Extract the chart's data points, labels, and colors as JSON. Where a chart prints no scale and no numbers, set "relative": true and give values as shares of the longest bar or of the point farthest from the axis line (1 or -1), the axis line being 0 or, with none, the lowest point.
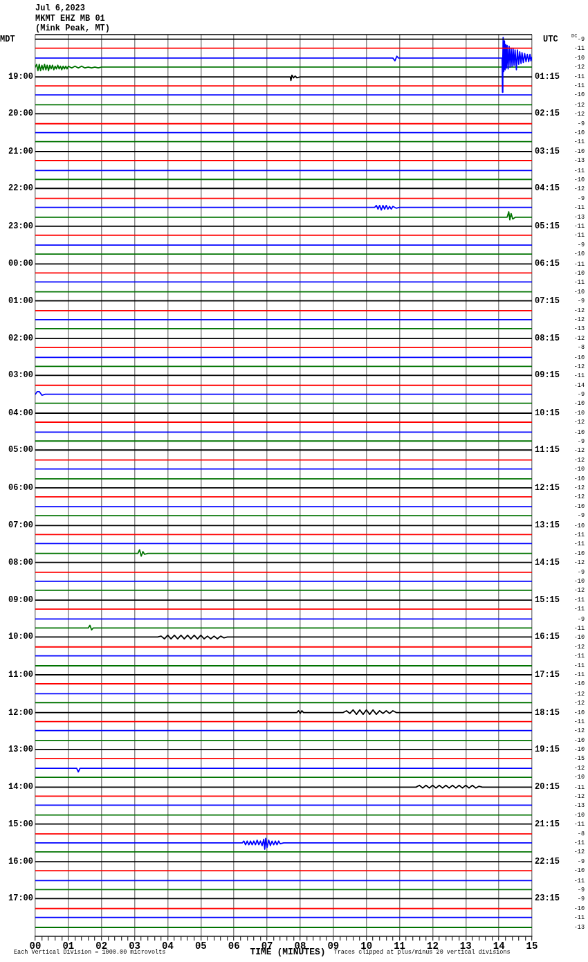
{
  "chart_data": {
    "type": "line",
    "relative": true,
    "title": "Jul 6,2023",
    "subtitle": "MKMT EHZ MB 01\n(Mink Peak, MT)",
    "xlabel": "TIME (MINUTES)",
    "ylabel": "MDT",
    "y2label": "UTC",
    "y3label": "DC",
    "grid": "x",
    "marker": "none",
    "xlim": [
      0,
      15
    ],
    "xticks": [
      {
        "value": 0,
        "label": "00"
      },
      {
        "value": 0.2,
        "label": null
      },
      {
        "value": 0.4,
        "label": null
      },
      {
        "value": 0.6,
        "label": null
      },
      {
        "value": 0.8,
        "label": null
      },
      {
        "value": 1,
        "label": "01"
      },
      {
        "value": 1.2,
        "label": null
      },
      {
        "value": 1.4,
        "label": null
      },
      {
        "value": 1.6,
        "label": null
      },
      {
        "value": 1.8,
        "label": null
      },
      {
        "value": 2,
        "label": "02"
      },
      {
        "value": 2.2,
        "label": null
      },
      {
        "value": 2.4,
        "label": null
      },
      {
        "value": 2.6,
        "label": null
      },
      {
        "value": 2.8,
        "label": null
      },
      {
        "value": 3,
        "label": "03"
      },
      {
        "value": 3.2,
        "label": null
      },
      {
        "value": 3.4,
        "label": null
      },
      {
        "value": 3.6,
        "label": null
      },
      {
        "value": 3.8,
        "label": null
      },
      {
        "value": 4,
        "label": "04"
      },
      {
        "value": 4.2,
        "label": null
      },
      {
        "value": 4.4,
        "label": null
      },
      {
        "value": 4.6,
        "label": null
      },
      {
        "value": 4.8,
        "label": null
      },
      {
        "value": 5,
        "label": "05"
      },
      {
        "value": 5.2,
        "label": null
      },
      {
        "value": 5.4,
        "label": null
      },
      {
        "value": 5.6,
        "label": null
      },
      {
        "value": 5.8,
        "label": null
      },
      {
        "value": 6,
        "label": "06"
      },
      {
        "value": 6.2,
        "label": null
      },
      {
        "value": 6.4,
        "label": null
      },
      {
        "value": 6.6,
        "label": null
      },
      {
        "value": 6.8,
        "label": null
      },
      {
        "value": 7,
        "label": "07"
      },
      {
        "value": 7.2,
        "label": null
      },
      {
        "value": 7.4,
        "label": null
      },
      {
        "value": 7.6,
        "label": null
      },
      {
        "value": 7.8,
        "label": null
      },
      {
        "value": 8,
        "label": "08"
      },
      {
        "value": 8.2,
        "label": null
      },
      {
        "value": 8.4,
        "label": null
      },
      {
        "value": 8.6,
        "label": null
      },
      {
        "value": 8.8,
        "label": null
      },
      {
        "value": 9,
        "label": "09"
      },
      {
        "value": 9.2,
        "label": null
      },
      {
        "value": 9.4,
        "label": null
      },
      {
        "value": 9.6,
        "label": null
      },
      {
        "value": 9.8,
        "label": null
      },
      {
        "value": 10,
        "label": "10"
      },
      {
        "value": 10.2,
        "label": null
      },
      {
        "value": 10.4,
        "label": null
      },
      {
        "value": 10.6,
        "label": null
      },
      {
        "value": 10.8,
        "label": null
      },
      {
        "value": 11,
        "label": "11"
      },
      {
        "value": 11.2,
        "label": null
      },
      {
        "value": 11.4,
        "label": null
      },
      {
        "value": 11.6,
        "label": null
      },
      {
        "value": 11.8,
        "label": null
      },
      {
        "value": 12,
        "label": "12"
      },
      {
        "value": 12.2,
        "label": null
      },
      {
        "value": 12.4,
        "label": null
      },
      {
        "value": 12.6,
        "label": null
      },
      {
        "value": 12.8,
        "label": null
      },
      {
        "value": 13,
        "label": "13"
      },
      {
        "value": 13.2,
        "label": null
      },
      {
        "value": 13.4,
        "label": null
      },
      {
        "value": 13.6,
        "label": null
      },
      {
        "value": 13.8,
        "label": null
      },
      {
        "value": 14,
        "label": "14"
      },
      {
        "value": 14.2,
        "label": null
      },
      {
        "value": 14.4,
        "label": null
      },
      {
        "value": 14.6,
        "label": null
      },
      {
        "value": 14.8,
        "label": null
      },
      {
        "value": 15,
        "label": "15"
      }
    ],
    "annotations": [
      "-9",
      "-11",
      "-10",
      "-12",
      "-11",
      "-11",
      "-10",
      "-12",
      "-12",
      "-9",
      "-10",
      "-11",
      "-10",
      "-13",
      "-11",
      "-10",
      "-12",
      "-9",
      "-11",
      "-13",
      "-11",
      "-11",
      "-9",
      "-10",
      "-11",
      "-10",
      "-11",
      "-10",
      "-9",
      "-12",
      "-12",
      "-13",
      "-12",
      "-8",
      "-10",
      "-12",
      "-11",
      "-14",
      "-9",
      "-10",
      "-10",
      "-12",
      "-10",
      "-9",
      "-12",
      "-12",
      "-10",
      "-10",
      "-12",
      "-12",
      "-10",
      "-9",
      "-10",
      "-11",
      "-11",
      "-10",
      "-12",
      "-9",
      "-10",
      "-12",
      "-11",
      "-11",
      "-9",
      "-11",
      "-10",
      "-12",
      "-11",
      "-11",
      "-11",
      "-10",
      "-12",
      "-12",
      "-10",
      "-11",
      "-12",
      "-10",
      "-10",
      "-15",
      "-12",
      "-10",
      "-11",
      "-12",
      "-13",
      "-10",
      "-11",
      "-8",
      "-11",
      "-12",
      "-9",
      "-10",
      "-11",
      "-9",
      "-9",
      "-10",
      "-11",
      "-13",
      "01:15",
      "02:15",
      "03:15",
      "04:15",
      "05:15",
      "06:15",
      "07:15",
      "08:15",
      "09:15",
      "10:15",
      "11:15",
      "12:15",
      "13:15",
      "14:15",
      "15:15",
      "16:15",
      "17:15",
      "18:15",
      "19:15",
      "20:15",
      "21:15",
      "22:15",
      "23:15",
      "Each Vertical Division = 1000.00 microvolts",
      "Traces clipped at plus/minus 20 vertical divisions"
    ],
    "series": [
      {
        "color": "#000000",
        "x": [
          0,
          15
        ],
        "values": [
          0.998,
          0.998
        ]
      },
      {
        "color": "#ff0000",
        "x": [
          0,
          15
        ],
        "values": [
          0.988,
          0.988
        ]
      },
      {
        "color": "#0000ff",
        "x": [
          0,
          10.8,
          10.86,
          10.92,
          10.97,
          11.05,
          14.1,
          14.11,
          14.12,
          14.13,
          14.15,
          14.17,
          14.19,
          14.21,
          14.23,
          14.25,
          14.28,
          14.31,
          14.34,
          14.37,
          14.4,
          14.43,
          14.46,
          14.49,
          14.53,
          14.56,
          14.6,
          14.63,
          14.67,
          14.7,
          14.74,
          14.78,
          14.82,
          14.86,
          14.9,
          14.94,
          14.97,
          15
        ],
        "values": [
          0.977,
          0.977,
          0.974,
          0.979,
          0.977,
          0.977,
          0.977,
          0.939,
          0.977,
          1,
          0.962,
          0.996,
          0.964,
          0.992,
          0.966,
          0.991,
          0.965,
          0.99,
          0.967,
          0.988,
          0.968,
          0.988,
          0.969,
          0.986,
          0.964,
          0.986,
          0.97,
          0.984,
          0.971,
          0.983,
          0.972,
          0.982,
          0.973,
          0.981,
          0.973,
          0.981,
          0.974,
          0.978
        ]
      },
      {
        "color": "#007300",
        "x": [
          0,
          0.04,
          0.08,
          0.12,
          0.16,
          0.2,
          0.24,
          0.28,
          0.32,
          0.36,
          0.4,
          0.44,
          0.48,
          0.52,
          0.56,
          0.6,
          0.64,
          0.68,
          0.72,
          0.76,
          0.8,
          0.84,
          0.88,
          0.92,
          0.96,
          1,
          1.1,
          1.2,
          1.3,
          1.4,
          1.5,
          1.6,
          1.7,
          1.8,
          1.9,
          2,
          15
        ],
        "values": [
          0.967,
          0.97,
          0.963,
          0.97,
          0.963,
          0.969,
          0.964,
          0.97,
          0.964,
          0.969,
          0.963,
          0.969,
          0.965,
          0.969,
          0.964,
          0.968,
          0.965,
          0.969,
          0.965,
          0.968,
          0.964,
          0.968,
          0.965,
          0.968,
          0.965,
          0.968,
          0.966,
          0.968,
          0.966,
          0.968,
          0.966,
          0.967,
          0.966,
          0.967,
          0.966,
          0.967,
          0.967
        ]
      },
      {
        "name": "19:00",
        "color": "#000000",
        "x": [
          0,
          7.7,
          7.72,
          7.75,
          7.8,
          7.85,
          7.9,
          8,
          15
        ],
        "values": [
          0.956,
          0.956,
          0.952,
          0.958,
          0.955,
          0.957,
          0.955,
          0.956,
          0.956
        ]
      },
      {
        "color": "#ff0000",
        "x": [
          0,
          15
        ],
        "values": [
          0.946,
          0.946
        ]
      },
      {
        "color": "#0000ff",
        "x": [
          0,
          15
        ],
        "values": [
          0.936,
          0.936
        ]
      },
      {
        "color": "#007300",
        "x": [
          0,
          15
        ],
        "values": [
          0.925,
          0.925
        ]
      },
      {
        "name": "20:00",
        "color": "#000000",
        "x": [
          0,
          15
        ],
        "values": [
          0.915,
          0.915
        ]
      },
      {
        "color": "#ff0000",
        "x": [
          0,
          15
        ],
        "values": [
          0.904,
          0.904
        ]
      },
      {
        "color": "#0000ff",
        "x": [
          0,
          15
        ],
        "values": [
          0.894,
          0.894
        ]
      },
      {
        "color": "#007300",
        "x": [
          0,
          15
        ],
        "values": [
          0.884,
          0.884
        ]
      },
      {
        "name": "21:00",
        "color": "#000000",
        "x": [
          0,
          15
        ],
        "values": [
          0.873,
          0.873
        ]
      },
      {
        "color": "#ff0000",
        "x": [
          0,
          15
        ],
        "values": [
          0.863,
          0.863
        ]
      },
      {
        "color": "#0000ff",
        "x": [
          0,
          15
        ],
        "values": [
          0.852,
          0.852
        ]
      },
      {
        "color": "#007300",
        "x": [
          0,
          15
        ],
        "values": [
          0.842,
          0.842
        ]
      },
      {
        "name": "22:00",
        "color": "#000000",
        "x": [
          0,
          15
        ],
        "values": [
          0.832,
          0.832
        ]
      },
      {
        "color": "#ff0000",
        "x": [
          0,
          15
        ],
        "values": [
          0.821,
          0.821
        ]
      },
      {
        "color": "#0000ff",
        "x": [
          0,
          10.25,
          10.3,
          10.35,
          10.4,
          10.45,
          10.5,
          10.55,
          10.6,
          10.65,
          10.7,
          10.75,
          10.8,
          10.9,
          11,
          15
        ],
        "values": [
          0.811,
          0.811,
          0.813,
          0.809,
          0.813,
          0.808,
          0.813,
          0.809,
          0.813,
          0.809,
          0.812,
          0.809,
          0.812,
          0.81,
          0.811,
          0.811
        ]
      },
      {
        "color": "#007300",
        "x": [
          0,
          14.25,
          14.3,
          14.33,
          14.37,
          14.42,
          14.5,
          15
        ],
        "values": [
          0.8,
          0.8,
          0.806,
          0.797,
          0.804,
          0.798,
          0.8,
          0.8
        ]
      },
      {
        "name": "23:00",
        "color": "#000000",
        "x": [
          0,
          15
        ],
        "values": [
          0.79,
          0.79
        ]
      },
      {
        "color": "#ff0000",
        "x": [
          0,
          15
        ],
        "values": [
          0.78,
          0.78
        ]
      },
      {
        "color": "#0000ff",
        "x": [
          0,
          15
        ],
        "values": [
          0.769,
          0.769
        ]
      },
      {
        "color": "#007300",
        "x": [
          0,
          15
        ],
        "values": [
          0.759,
          0.759
        ]
      },
      {
        "name": "00:00",
        "color": "#000000",
        "x": [
          0,
          15
        ],
        "values": [
          0.748,
          0.748
        ]
      },
      {
        "color": "#ff0000",
        "x": [
          0,
          15
        ],
        "values": [
          0.738,
          0.738
        ]
      },
      {
        "color": "#0000ff",
        "x": [
          0,
          15
        ],
        "values": [
          0.728,
          0.728
        ]
      },
      {
        "color": "#007300",
        "x": [
          0,
          15
        ],
        "values": [
          0.717,
          0.717
        ]
      },
      {
        "name": "01:00",
        "color": "#000000",
        "x": [
          0,
          15
        ],
        "values": [
          0.707,
          0.707
        ]
      },
      {
        "color": "#ff0000",
        "x": [
          0,
          15
        ],
        "values": [
          0.696,
          0.696
        ]
      },
      {
        "color": "#0000ff",
        "x": [
          0,
          15
        ],
        "values": [
          0.686,
          0.686
        ]
      },
      {
        "color": "#007300",
        "x": [
          0,
          15
        ],
        "values": [
          0.676,
          0.676
        ]
      },
      {
        "name": "02:00",
        "color": "#000000",
        "x": [
          0,
          15
        ],
        "values": [
          0.665,
          0.665
        ]
      },
      {
        "color": "#ff0000",
        "x": [
          0,
          15
        ],
        "values": [
          0.655,
          0.655
        ]
      },
      {
        "color": "#0000ff",
        "x": [
          0,
          15
        ],
        "values": [
          0.644,
          0.644
        ]
      },
      {
        "color": "#007300",
        "x": [
          0,
          15
        ],
        "values": [
          0.634,
          0.634
        ]
      },
      {
        "name": "03:00",
        "color": "#000000",
        "x": [
          0,
          15
        ],
        "values": [
          0.624,
          0.624
        ]
      },
      {
        "color": "#ff0000",
        "x": [
          0,
          15
        ],
        "values": [
          0.613,
          0.613
        ]
      },
      {
        "color": "#0000ff",
        "x": [
          0,
          0.06,
          0.12,
          0.2,
          0.3,
          15
        ],
        "values": [
          0.603,
          0.606,
          0.606,
          0.602,
          0.603,
          0.603
        ]
      },
      {
        "color": "#007300",
        "x": [
          0,
          15
        ],
        "values": [
          0.593,
          0.593
        ]
      },
      {
        "name": "04:00",
        "color": "#000000",
        "x": [
          0,
          15
        ],
        "values": [
          0.582,
          0.582
        ]
      },
      {
        "color": "#ff0000",
        "x": [
          0,
          15
        ],
        "values": [
          0.572,
          0.572
        ]
      },
      {
        "color": "#0000ff",
        "x": [
          0,
          15
        ],
        "values": [
          0.561,
          0.561
        ]
      },
      {
        "color": "#007300",
        "x": [
          0,
          15
        ],
        "values": [
          0.551,
          0.551
        ]
      },
      {
        "name": "05:00",
        "color": "#000000",
        "x": [
          0,
          15
        ],
        "values": [
          0.541,
          0.541
        ]
      },
      {
        "color": "#ff0000",
        "x": [
          0,
          15
        ],
        "values": [
          0.53,
          0.53
        ]
      },
      {
        "color": "#0000ff",
        "x": [
          0,
          15
        ],
        "values": [
          0.52,
          0.52
        ]
      },
      {
        "color": "#007300",
        "x": [
          0,
          15
        ],
        "values": [
          0.509,
          0.509
        ]
      },
      {
        "name": "06:00",
        "color": "#000000",
        "x": [
          0,
          15
        ],
        "values": [
          0.499,
          0.499
        ]
      },
      {
        "color": "#ff0000",
        "x": [
          0,
          15
        ],
        "values": [
          0.489,
          0.489
        ]
      },
      {
        "color": "#0000ff",
        "x": [
          0,
          15
        ],
        "values": [
          0.478,
          0.478
        ]
      },
      {
        "color": "#007300",
        "x": [
          0,
          15
        ],
        "values": [
          0.468,
          0.468
        ]
      },
      {
        "name": "07:00",
        "color": "#000000",
        "x": [
          0,
          15
        ],
        "values": [
          0.457,
          0.457
        ]
      },
      {
        "color": "#ff0000",
        "x": [
          0,
          15
        ],
        "values": [
          0.447,
          0.447
        ]
      },
      {
        "color": "#0000ff",
        "x": [
          0,
          15
        ],
        "values": [
          0.437,
          0.437
        ]
      },
      {
        "color": "#007300",
        "x": [
          0,
          3.1,
          3.15,
          3.2,
          3.25,
          3.3,
          3.4,
          15
        ],
        "values": [
          0.426,
          0.426,
          0.43,
          0.423,
          0.428,
          0.425,
          0.426,
          0.426
        ]
      },
      {
        "name": "08:00",
        "color": "#000000",
        "x": [
          0,
          15
        ],
        "values": [
          0.416,
          0.416
        ]
      },
      {
        "color": "#ff0000",
        "x": [
          0,
          15
        ],
        "values": [
          0.405,
          0.405
        ]
      },
      {
        "color": "#0000ff",
        "x": [
          0,
          15
        ],
        "values": [
          0.395,
          0.395
        ]
      },
      {
        "color": "#007300",
        "x": [
          0,
          15
        ],
        "values": [
          0.385,
          0.385
        ]
      },
      {
        "name": "09:00",
        "color": "#000000",
        "x": [
          0,
          15
        ],
        "values": [
          0.374,
          0.374
        ]
      },
      {
        "color": "#ff0000",
        "x": [
          0,
          15
        ],
        "values": [
          0.364,
          0.364
        ]
      },
      {
        "color": "#0000ff",
        "x": [
          0,
          15
        ],
        "values": [
          0.353,
          0.353
        ]
      },
      {
        "color": "#007300",
        "x": [
          0,
          1.6,
          1.65,
          1.7,
          1.75,
          15
        ],
        "values": [
          0.343,
          0.343,
          0.346,
          0.341,
          0.343,
          0.343
        ]
      },
      {
        "name": "10:00",
        "color": "#000000",
        "x": [
          0,
          3.7,
          3.8,
          3.9,
          4,
          4.1,
          4.2,
          4.3,
          4.4,
          4.5,
          4.6,
          4.7,
          4.8,
          4.9,
          5,
          5.1,
          5.2,
          5.3,
          5.4,
          5.5,
          5.6,
          5.7,
          5.8,
          15
        ],
        "values": [
          0.333,
          0.333,
          0.334,
          0.331,
          0.335,
          0.331,
          0.335,
          0.331,
          0.335,
          0.331,
          0.335,
          0.331,
          0.335,
          0.331,
          0.335,
          0.331,
          0.334,
          0.331,
          0.334,
          0.331,
          0.334,
          0.332,
          0.333,
          0.333
        ]
      },
      {
        "color": "#ff0000",
        "x": [
          0,
          15
        ],
        "values": [
          0.322,
          0.322
        ]
      },
      {
        "color": "#0000ff",
        "x": [
          0,
          15
        ],
        "values": [
          0.312,
          0.312
        ]
      },
      {
        "color": "#007300",
        "x": [
          0,
          15
        ],
        "values": [
          0.301,
          0.301
        ]
      },
      {
        "name": "11:00",
        "color": "#000000",
        "x": [
          0,
          15
        ],
        "values": [
          0.291,
          0.291
        ]
      },
      {
        "color": "#ff0000",
        "x": [
          0,
          15
        ],
        "values": [
          0.281,
          0.281
        ]
      },
      {
        "color": "#0000ff",
        "x": [
          0,
          15
        ],
        "values": [
          0.27,
          0.27
        ]
      },
      {
        "color": "#007300",
        "x": [
          0,
          15
        ],
        "values": [
          0.26,
          0.26
        ]
      },
      {
        "name": "12:00",
        "color": "#000000",
        "x": [
          0,
          7.9,
          7.95,
          8,
          8.05,
          8.1,
          9.3,
          9.4,
          9.5,
          9.6,
          9.7,
          9.8,
          9.9,
          10,
          10.1,
          10.2,
          10.3,
          10.4,
          10.5,
          10.6,
          10.7,
          10.8,
          10.9,
          15
        ],
        "values": [
          0.249,
          0.249,
          0.251,
          0.248,
          0.251,
          0.249,
          0.249,
          0.251,
          0.248,
          0.252,
          0.247,
          0.252,
          0.247,
          0.252,
          0.247,
          0.252,
          0.247,
          0.251,
          0.248,
          0.251,
          0.248,
          0.251,
          0.249,
          0.249
        ]
      },
      {
        "color": "#ff0000",
        "x": [
          0,
          15
        ],
        "values": [
          0.239,
          0.239
        ]
      },
      {
        "color": "#0000ff",
        "x": [
          0,
          15
        ],
        "values": [
          0.229,
          0.229
        ]
      },
      {
        "color": "#007300",
        "x": [
          0,
          15
        ],
        "values": [
          0.218,
          0.218
        ]
      },
      {
        "name": "13:00",
        "color": "#000000",
        "x": [
          0,
          15
        ],
        "values": [
          0.208,
          0.208
        ]
      },
      {
        "color": "#ff0000",
        "x": [
          0,
          15
        ],
        "values": [
          0.198,
          0.198
        ]
      },
      {
        "color": "#0000ff",
        "x": [
          0,
          1.25,
          1.3,
          1.35,
          15
        ],
        "values": [
          0.187,
          0.187,
          0.183,
          0.187,
          0.187
        ]
      },
      {
        "color": "#007300",
        "x": [
          0,
          15
        ],
        "values": [
          0.177,
          0.177
        ]
      },
      {
        "name": "14:00",
        "color": "#000000",
        "x": [
          0,
          11.5,
          11.6,
          11.7,
          11.8,
          11.9,
          12,
          12.1,
          12.2,
          12.3,
          12.4,
          12.5,
          12.6,
          12.7,
          12.8,
          12.9,
          13,
          13.1,
          13.2,
          13.3,
          13.4,
          13.5,
          15
        ],
        "values": [
          0.166,
          0.166,
          0.168,
          0.165,
          0.168,
          0.165,
          0.168,
          0.165,
          0.168,
          0.165,
          0.168,
          0.165,
          0.168,
          0.165,
          0.168,
          0.165,
          0.168,
          0.165,
          0.168,
          0.165,
          0.167,
          0.166,
          0.166
        ]
      },
      {
        "color": "#ff0000",
        "x": [
          0,
          15
        ],
        "values": [
          0.156,
          0.156
        ]
      },
      {
        "color": "#0000ff",
        "x": [
          0,
          15
        ],
        "values": [
          0.146,
          0.146
        ]
      },
      {
        "color": "#007300",
        "x": [
          0,
          15
        ],
        "values": [
          0.135,
          0.135
        ]
      },
      {
        "name": "15:00",
        "color": "#000000",
        "x": [
          0,
          15
        ],
        "values": [
          0.125,
          0.125
        ]
      },
      {
        "color": "#ff0000",
        "x": [
          0,
          15
        ],
        "values": [
          0.114,
          0.114
        ]
      },
      {
        "color": "#0000ff",
        "x": [
          0,
          6.25,
          6.3,
          6.35,
          6.4,
          6.45,
          6.5,
          6.55,
          6.6,
          6.65,
          6.7,
          6.75,
          6.8,
          6.85,
          6.9,
          6.93,
          6.96,
          7,
          7.05,
          7.1,
          7.15,
          7.2,
          7.25,
          7.3,
          7.35,
          7.4,
          7.5,
          15
        ],
        "values": [
          0.104,
          0.104,
          0.106,
          0.102,
          0.106,
          0.102,
          0.106,
          0.102,
          0.106,
          0.102,
          0.107,
          0.102,
          0.106,
          0.101,
          0.108,
          0.097,
          0.109,
          0.099,
          0.107,
          0.101,
          0.106,
          0.102,
          0.106,
          0.102,
          0.106,
          0.103,
          0.104,
          0.104
        ]
      },
      {
        "color": "#007300",
        "x": [
          0,
          15
        ],
        "values": [
          0.094,
          0.094
        ]
      },
      {
        "name": "16:00",
        "color": "#000000",
        "x": [
          0,
          15
        ],
        "values": [
          0.083,
          0.083
        ]
      },
      {
        "color": "#ff0000",
        "x": [
          0,
          15
        ],
        "values": [
          0.073,
          0.073
        ]
      },
      {
        "color": "#0000ff",
        "x": [
          0,
          15
        ],
        "values": [
          0.062,
          0.062
        ]
      },
      {
        "color": "#007300",
        "x": [
          0,
          15
        ],
        "values": [
          0.052,
          0.052
        ]
      },
      {
        "name": "17:00",
        "color": "#000000",
        "x": [
          0,
          15
        ],
        "values": [
          0.042,
          0.042
        ]
      },
      {
        "color": "#ff0000",
        "x": [
          0,
          15
        ],
        "values": [
          0.031,
          0.031
        ]
      },
      {
        "color": "#0000ff",
        "x": [
          0,
          15
        ],
        "values": [
          0.021,
          0.021
        ]
      },
      {
        "color": "#007300",
        "x": [
          0,
          15
        ],
        "values": [
          0.01,
          0.01
        ]
      }
    ]
  }
}
